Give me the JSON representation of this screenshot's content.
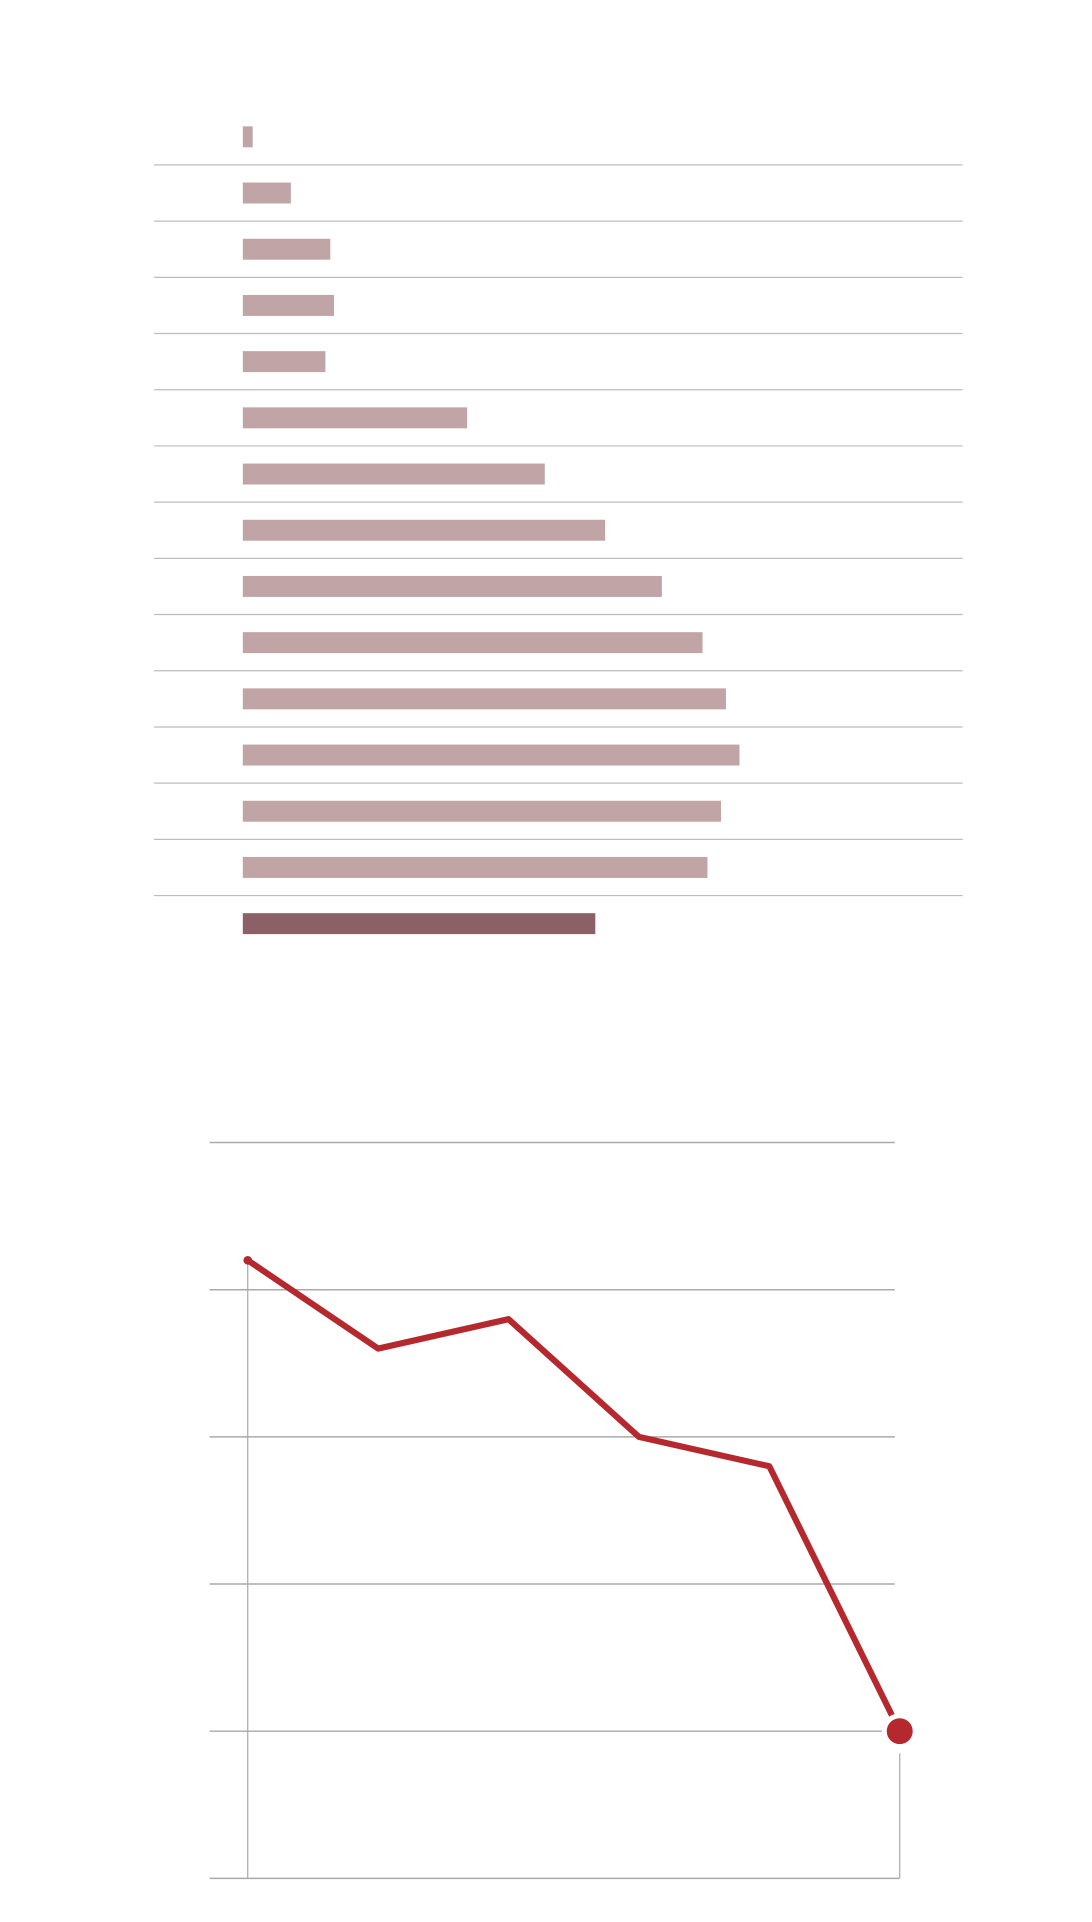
{
  "chart_data": [
    {
      "type": "bar",
      "orientation": "horizontal",
      "values": [
        8,
        39,
        71,
        74,
        67,
        182,
        245,
        294,
        340,
        373,
        392,
        403,
        388,
        377,
        286
      ],
      "colors": [
        "#c0a4a6",
        "#c0a4a6",
        "#c0a4a6",
        "#c0a4a6",
        "#c0a4a6",
        "#c0a4a6",
        "#c0a4a6",
        "#c0a4a6",
        "#c0a4a6",
        "#c0a4a6",
        "#c0a4a6",
        "#c0a4a6",
        "#c0a4a6",
        "#c0a4a6",
        "#8b6167"
      ],
      "xlim": [
        0,
        584
      ]
    },
    {
      "type": "line",
      "x": [
        0,
        1,
        2,
        3,
        4,
        5
      ],
      "values": [
        4.2,
        3.6,
        3.8,
        3.0,
        2.8,
        1.0
      ],
      "color": "#b5282e",
      "xlim": [
        0,
        5
      ],
      "ylim": [
        0,
        5
      ],
      "yticks": [
        0,
        1,
        2,
        3,
        4,
        5
      ],
      "grid": true
    }
  ]
}
